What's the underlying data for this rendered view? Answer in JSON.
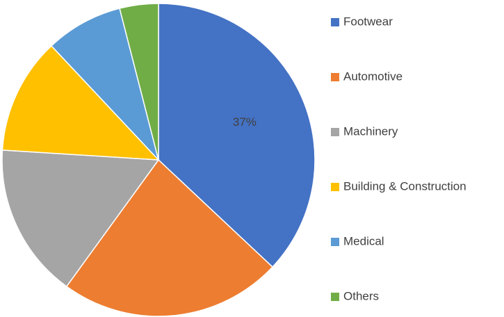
{
  "chart_data": {
    "type": "pie",
    "categories": [
      "Footwear",
      "Automotive",
      "Machinery",
      "Building & Construction",
      "Medical",
      "Others"
    ],
    "values": [
      37,
      23,
      16,
      12,
      8,
      4
    ],
    "value_labels": [
      "37%",
      null,
      null,
      null,
      null,
      null
    ],
    "colors": [
      "#4472c4",
      "#ed7d31",
      "#a5a5a5",
      "#ffc000",
      "#5b9bd5",
      "#70ad47"
    ],
    "legend": "right"
  }
}
